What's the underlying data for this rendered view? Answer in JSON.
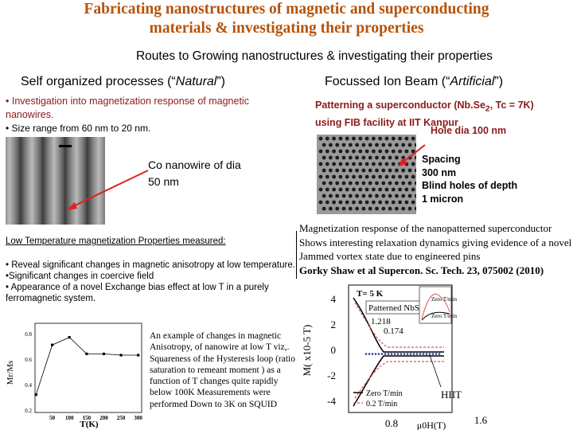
{
  "title_line1": "Fabricating nanostructures of magnetic and superconducting",
  "title_line2": "materials & investigating their properties",
  "subtitle": "Routes to Growing nanostructures & investigating their properties",
  "left": {
    "heading_main": "Self organized processes (“",
    "heading_italic": "Natural",
    "heading_end": "”)",
    "bullet1": "• Investigation into magnetization response of magnetic nanowires.",
    "bullet2": "• Size range from 60 nm to 20 nm.",
    "nanowire_label_line1": "Co nanowire of dia",
    "nanowire_label_line2": "50 nm",
    "ltmp_heading": "Low Temperature magnetization Properties measured:",
    "ltmp_items": [
      "• Reveal significant changes in magnetic anisotropy at low temperature.",
      "•Significant changes in coercive field",
      "• Appearance of a novel Exchange bias effect at low T in a purely ferromagnetic system."
    ],
    "caption": "An example of changes in magnetic Anisotropy, of nanowire at low T viz,. Squareness of the Hysteresis loop (ratio saturation to remeant moment ) as a function of T changes quite rapidly below 100K Measurements were performed Down to 3K on SQUID"
  },
  "right": {
    "heading_main": "Focussed Ion Beam (“",
    "heading_italic": "Artificial",
    "heading_end": "”)",
    "fib_line1": "Patterning a superconductor (Nb.Se",
    "fib_sub": "2",
    "fib_line1_end": ", Tc = 7K)",
    "fib_line2": "using FIB facility at IIT Kanpur",
    "hole": "Hole dia 100 nm",
    "spacing_lines": [
      "Spacing",
      "300 nm",
      "Blind holes of depth",
      "1 micron"
    ],
    "mag_text": "Magnetization response of the nanopatterned superconductor Shows interesting relaxation dynamics giving evidence of a novel Jammed vortex state due to engineered pins",
    "citation": "Gorky Shaw et al Supercon. Sc. Tech. 23, 075002 (2010)"
  },
  "chart_data": [
    {
      "type": "line",
      "xlabel": "T(K)",
      "ylabel": "Mr/Ms",
      "x": [
        3,
        50,
        100,
        150,
        200,
        250,
        300
      ],
      "y": [
        0.32,
        0.71,
        0.77,
        0.64,
        0.64,
        0.63,
        0.63
      ],
      "xticks": [
        "50",
        "100",
        "150",
        "200",
        "250",
        "300"
      ],
      "yticks": [
        "0.2",
        "0.4",
        "0.6",
        "0.8"
      ],
      "xlim": [
        0,
        310
      ],
      "ylim": [
        0.18,
        0.88
      ]
    },
    {
      "type": "line",
      "xlabel": "μ0H(T)",
      "ylabel": "M( x10-5 T)",
      "annotations": [
        "T= 5 K",
        "Patterned NbSe2",
        "1.218",
        "0.174",
        "HIIT",
        "Zero T/min",
        "0.2 T/min",
        "0.2 T/min",
        "Zero T/min"
      ],
      "xticks": [
        "0.8",
        "1.6"
      ],
      "yticks": [
        "4",
        "2",
        "0",
        "-2",
        "-4"
      ],
      "series": [
        {
          "name": "Zero T/min",
          "color": "#000000"
        },
        {
          "name": "0.2 T/min",
          "color": "#e05050"
        }
      ]
    }
  ]
}
